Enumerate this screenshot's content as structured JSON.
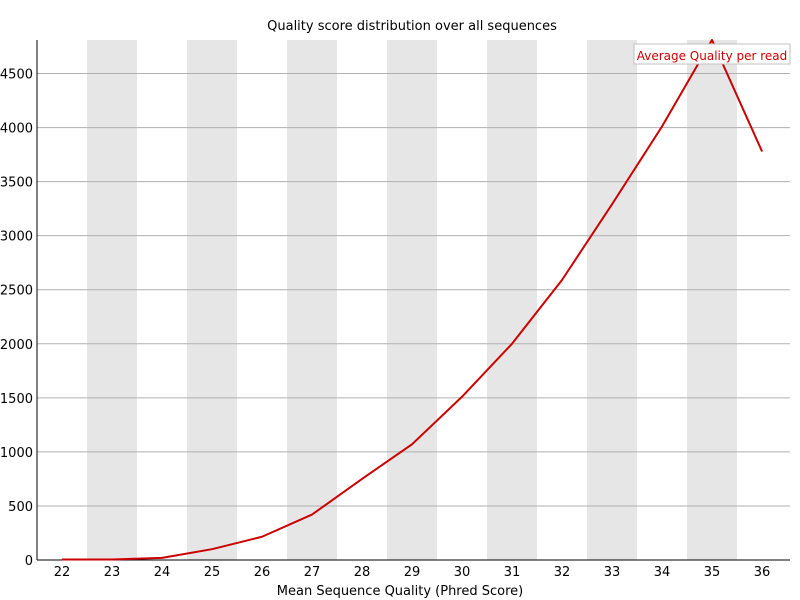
{
  "chart_data": {
    "type": "line",
    "title": "Quality score distribution over all sequences",
    "xlabel": "Mean Sequence Quality (Phred Score)",
    "ylabel": "",
    "categories": [
      "22",
      "23",
      "24",
      "25",
      "26",
      "27",
      "28",
      "29",
      "30",
      "31",
      "32",
      "33",
      "34",
      "35",
      "36"
    ],
    "y_ticks": [
      0,
      500,
      1000,
      1500,
      2000,
      2500,
      3000,
      3500,
      4000,
      4500
    ],
    "ylim": [
      0,
      4810
    ],
    "grid": true,
    "alternating_bands": true,
    "legend_position": "top-right",
    "series": [
      {
        "name": "Average Quality per read",
        "color": "#cc0000",
        "values": [
          5,
          5,
          20,
          100,
          215,
          420,
          750,
          1070,
          1510,
          2000,
          2590,
          3290,
          4010,
          4810,
          3780
        ]
      }
    ]
  },
  "colors": {
    "band": "#e6e6e6",
    "grid": "#b0b0b0",
    "axis": "#000000",
    "legend_border": "#c0c0c0"
  }
}
